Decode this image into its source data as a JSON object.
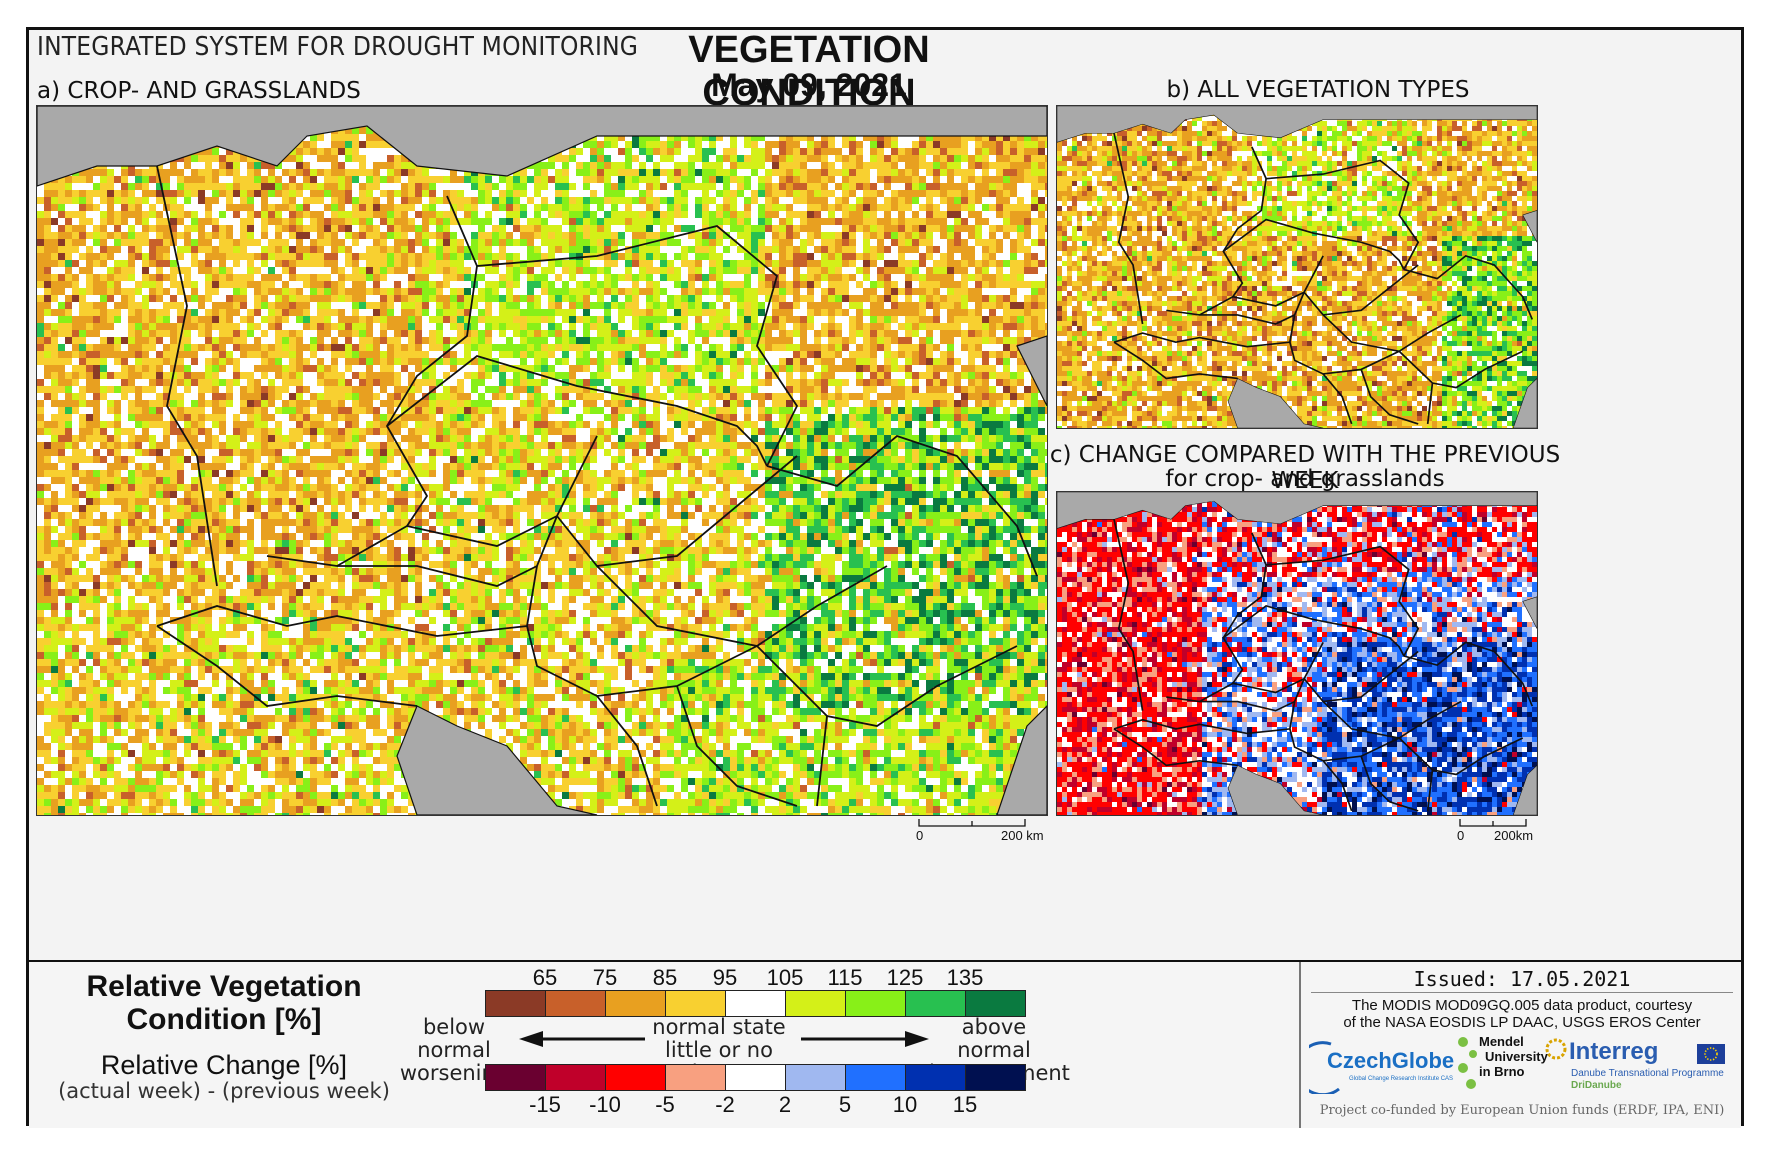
{
  "header": {
    "system_name": "INTEGRATED SYSTEM FOR DROUGHT MONITORING",
    "title": "VEGETATION CONDITION",
    "date": "May 09, 2021"
  },
  "panels": {
    "a": {
      "label": "a) CROP- AND GRASSLANDS",
      "scale_zero": "0",
      "scale_label": "200 km"
    },
    "b": {
      "label": "b) ALL VEGETATION TYPES"
    },
    "c": {
      "label": "c) CHANGE COMPARED WITH THE PREVIOUS WEEK",
      "sublabel": "for crop- and grasslands",
      "scale_zero": "0",
      "scale_label": "200km"
    }
  },
  "legend": {
    "condition_title_line1": "Relative Vegetation",
    "condition_title_line2": "Condition [%]",
    "change_title": "Relative Change [%]",
    "change_formula": "(actual week) - (previous week)",
    "condition_ticks": [
      "65",
      "75",
      "85",
      "95",
      "105",
      "115",
      "125",
      "135"
    ],
    "condition_colors": [
      "#8b3a26",
      "#c8602a",
      "#e8a020",
      "#f8d030",
      "#ffffff",
      "#d4f018",
      "#88f018",
      "#28c050",
      "#0a7a40"
    ],
    "change_ticks": [
      "-15",
      "-10",
      "-5",
      "-2",
      "2",
      "5",
      "10",
      "15"
    ],
    "change_colors": [
      "#6a0030",
      "#c0002a",
      "#ff0000",
      "#f8a080",
      "#ffffff",
      "#a0b8f0",
      "#2070ff",
      "#0030b0",
      "#001050"
    ],
    "below_line1": "below normal",
    "below_line2": "worsening",
    "normal_line1": "normal state",
    "normal_line2": "little or no change",
    "above_line1": "above normal",
    "above_line2": "improvement"
  },
  "credits": {
    "issued": "Issued: 17.05.2021",
    "modis_line1": "The MODIS MOD09GQ.005 data product, courtesy",
    "modis_line2": "of the NASA EOSDIS LP DAAC, USGS EROS Center",
    "czechglobe": "CzechGlobe",
    "czechglobe_sub": "Global Change Research Institute CAS",
    "mendel_line1": "Mendel",
    "mendel_line2": "University",
    "mendel_line3": "in Brno",
    "interreg": "Interreg",
    "interreg_sub1": "Danube Transnational Programme",
    "interreg_sub2": "DriDanube",
    "funded": "Project co-funded by European Union funds (ERDF, IPA, ENI)"
  }
}
